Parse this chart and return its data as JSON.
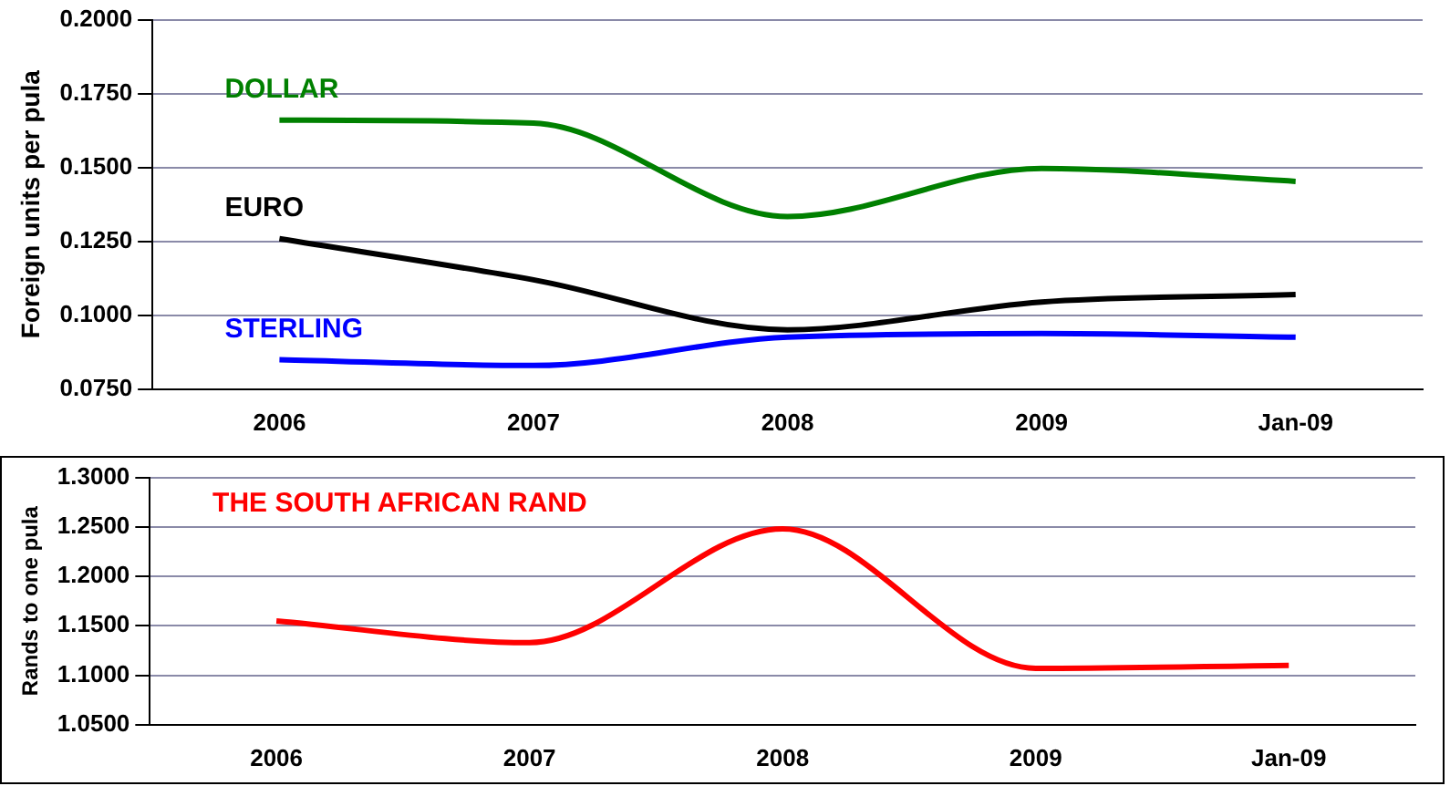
{
  "chart_data": [
    {
      "type": "line",
      "ylabel": "Foreign units per pula",
      "categories": [
        "2006",
        "2007",
        "2008",
        "2009",
        "Jan-09"
      ],
      "series": [
        {
          "name": "DOLLAR",
          "color": "#008000",
          "values": [
            0.166,
            0.165,
            0.1334,
            0.1497,
            0.1453
          ]
        },
        {
          "name": "EURO",
          "color": "#000000",
          "values": [
            0.1259,
            0.112,
            0.0951,
            0.1045,
            0.107
          ]
        },
        {
          "name": "STERLING",
          "color": "#0000ff",
          "values": [
            0.085,
            0.083,
            0.0926,
            0.0938,
            0.0926
          ]
        }
      ],
      "ylim": [
        0.075,
        0.2
      ],
      "yticks": [
        {
          "value": 0.075,
          "label": "0.0750"
        },
        {
          "value": 0.1,
          "label": "0.1000"
        },
        {
          "value": 0.125,
          "label": "0.1250"
        },
        {
          "value": 0.15,
          "label": "0.1500"
        },
        {
          "value": 0.175,
          "label": "0.1750"
        },
        {
          "value": 0.2,
          "label": "0.2000"
        }
      ],
      "grid": "y",
      "legend": false,
      "marker": "none",
      "line_style": "solid"
    },
    {
      "type": "line",
      "ylabel": "Rands to one pula",
      "categories": [
        "2006",
        "2007",
        "2008",
        "2009",
        "Jan-09"
      ],
      "series": [
        {
          "name": "THE SOUTH AFRICAN RAND",
          "color": "#ff0000",
          "values": [
            1.155,
            1.133,
            1.248,
            1.107,
            1.11
          ]
        }
      ],
      "ylim": [
        1.05,
        1.3
      ],
      "yticks": [
        {
          "value": 1.05,
          "label": "1.0500"
        },
        {
          "value": 1.1,
          "label": "1.1000"
        },
        {
          "value": 1.15,
          "label": "1.1500"
        },
        {
          "value": 1.2,
          "label": "1.2000"
        },
        {
          "value": 1.25,
          "label": "1.2500"
        },
        {
          "value": 1.3,
          "label": "1.3000"
        }
      ],
      "grid": "y",
      "legend": false,
      "marker": "none",
      "line_style": "solid"
    }
  ]
}
